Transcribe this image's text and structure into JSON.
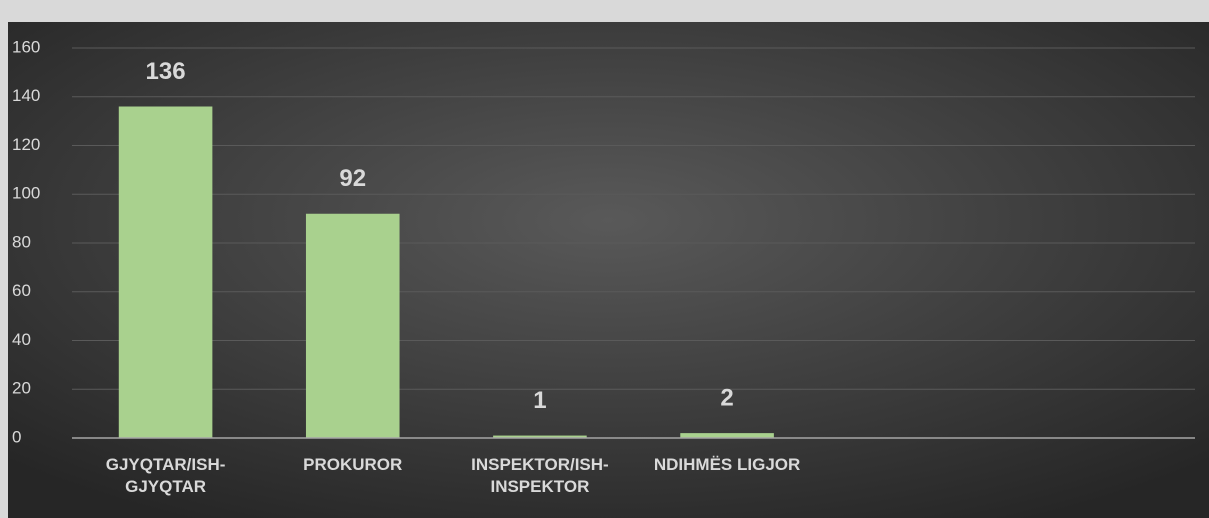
{
  "chart_data": {
    "type": "bar",
    "categories": [
      "GJYQTAR/ISH-GJYQTAR",
      "PROKUROR",
      "INSPEKTOR/ISH-INSPEKTOR",
      "NDIHMËS LIGJOR",
      null,
      null
    ],
    "values": [
      136,
      92,
      1,
      2,
      null,
      null
    ],
    "color": "#a9d18e",
    "ylim": [
      0,
      160
    ],
    "yticks": [
      0,
      20,
      40,
      60,
      80,
      100,
      120,
      140,
      160
    ],
    "grid": true
  }
}
